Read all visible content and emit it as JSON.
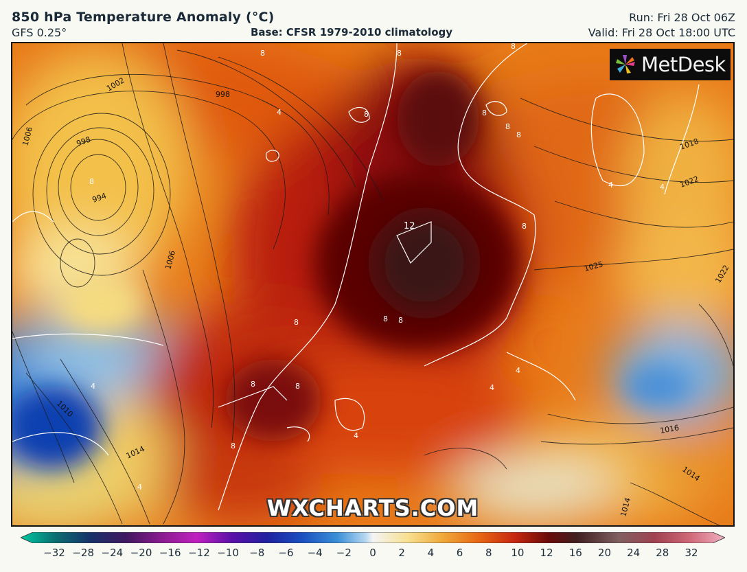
{
  "header": {
    "title": "850 hPa Temperature Anomaly (°C)",
    "model": "GFS 0.25°",
    "base": "Base: CFSR 1979-2010 climatology",
    "run": "Run: Fri 28 Oct 06Z",
    "valid": "Valid: Fri 28 Oct 18:00 UTC"
  },
  "logo": {
    "text": "MetDesk",
    "icon": "pinwheel-icon"
  },
  "watermark": "WXCHARTS.COM",
  "colorbar": {
    "ticks": [
      "−32",
      "−28",
      "−24",
      "−20",
      "−16",
      "−12",
      "−10",
      "−8",
      "−6",
      "−4",
      "−2",
      "0",
      "2",
      "4",
      "6",
      "8",
      "10",
      "12",
      "16",
      "20",
      "24",
      "28",
      "32"
    ],
    "colors": [
      "#00c0a0",
      "#0a6b6e",
      "#1a2a60",
      "#3c1a5a",
      "#7a1a8a",
      "#b01ab0",
      "#5a0aa0",
      "#2a20a8",
      "#1a4ac0",
      "#3a8ad8",
      "#8cc0e8",
      "#f0f0f0",
      "#f8e090",
      "#f0a030",
      "#e86010",
      "#c02010",
      "#6a0a0a",
      "#3a2020",
      "#7a5a5a",
      "#a04050",
      "#c06070",
      "#e090a0"
    ]
  },
  "pressure_labels": [
    "1002",
    "998",
    "998",
    "994",
    "1006",
    "1006",
    "1010",
    "1014",
    "1018",
    "1022",
    "1025",
    "1022",
    "1016",
    "1014",
    "1014"
  ],
  "anomaly_labels": [
    "8",
    "8",
    "8",
    "8",
    "8",
    "8",
    "8",
    "8",
    "4",
    "4",
    "4",
    "12",
    "8",
    "8",
    "8",
    "8",
    "8",
    "8",
    "4",
    "4",
    "4",
    "4",
    "4",
    "8"
  ]
}
